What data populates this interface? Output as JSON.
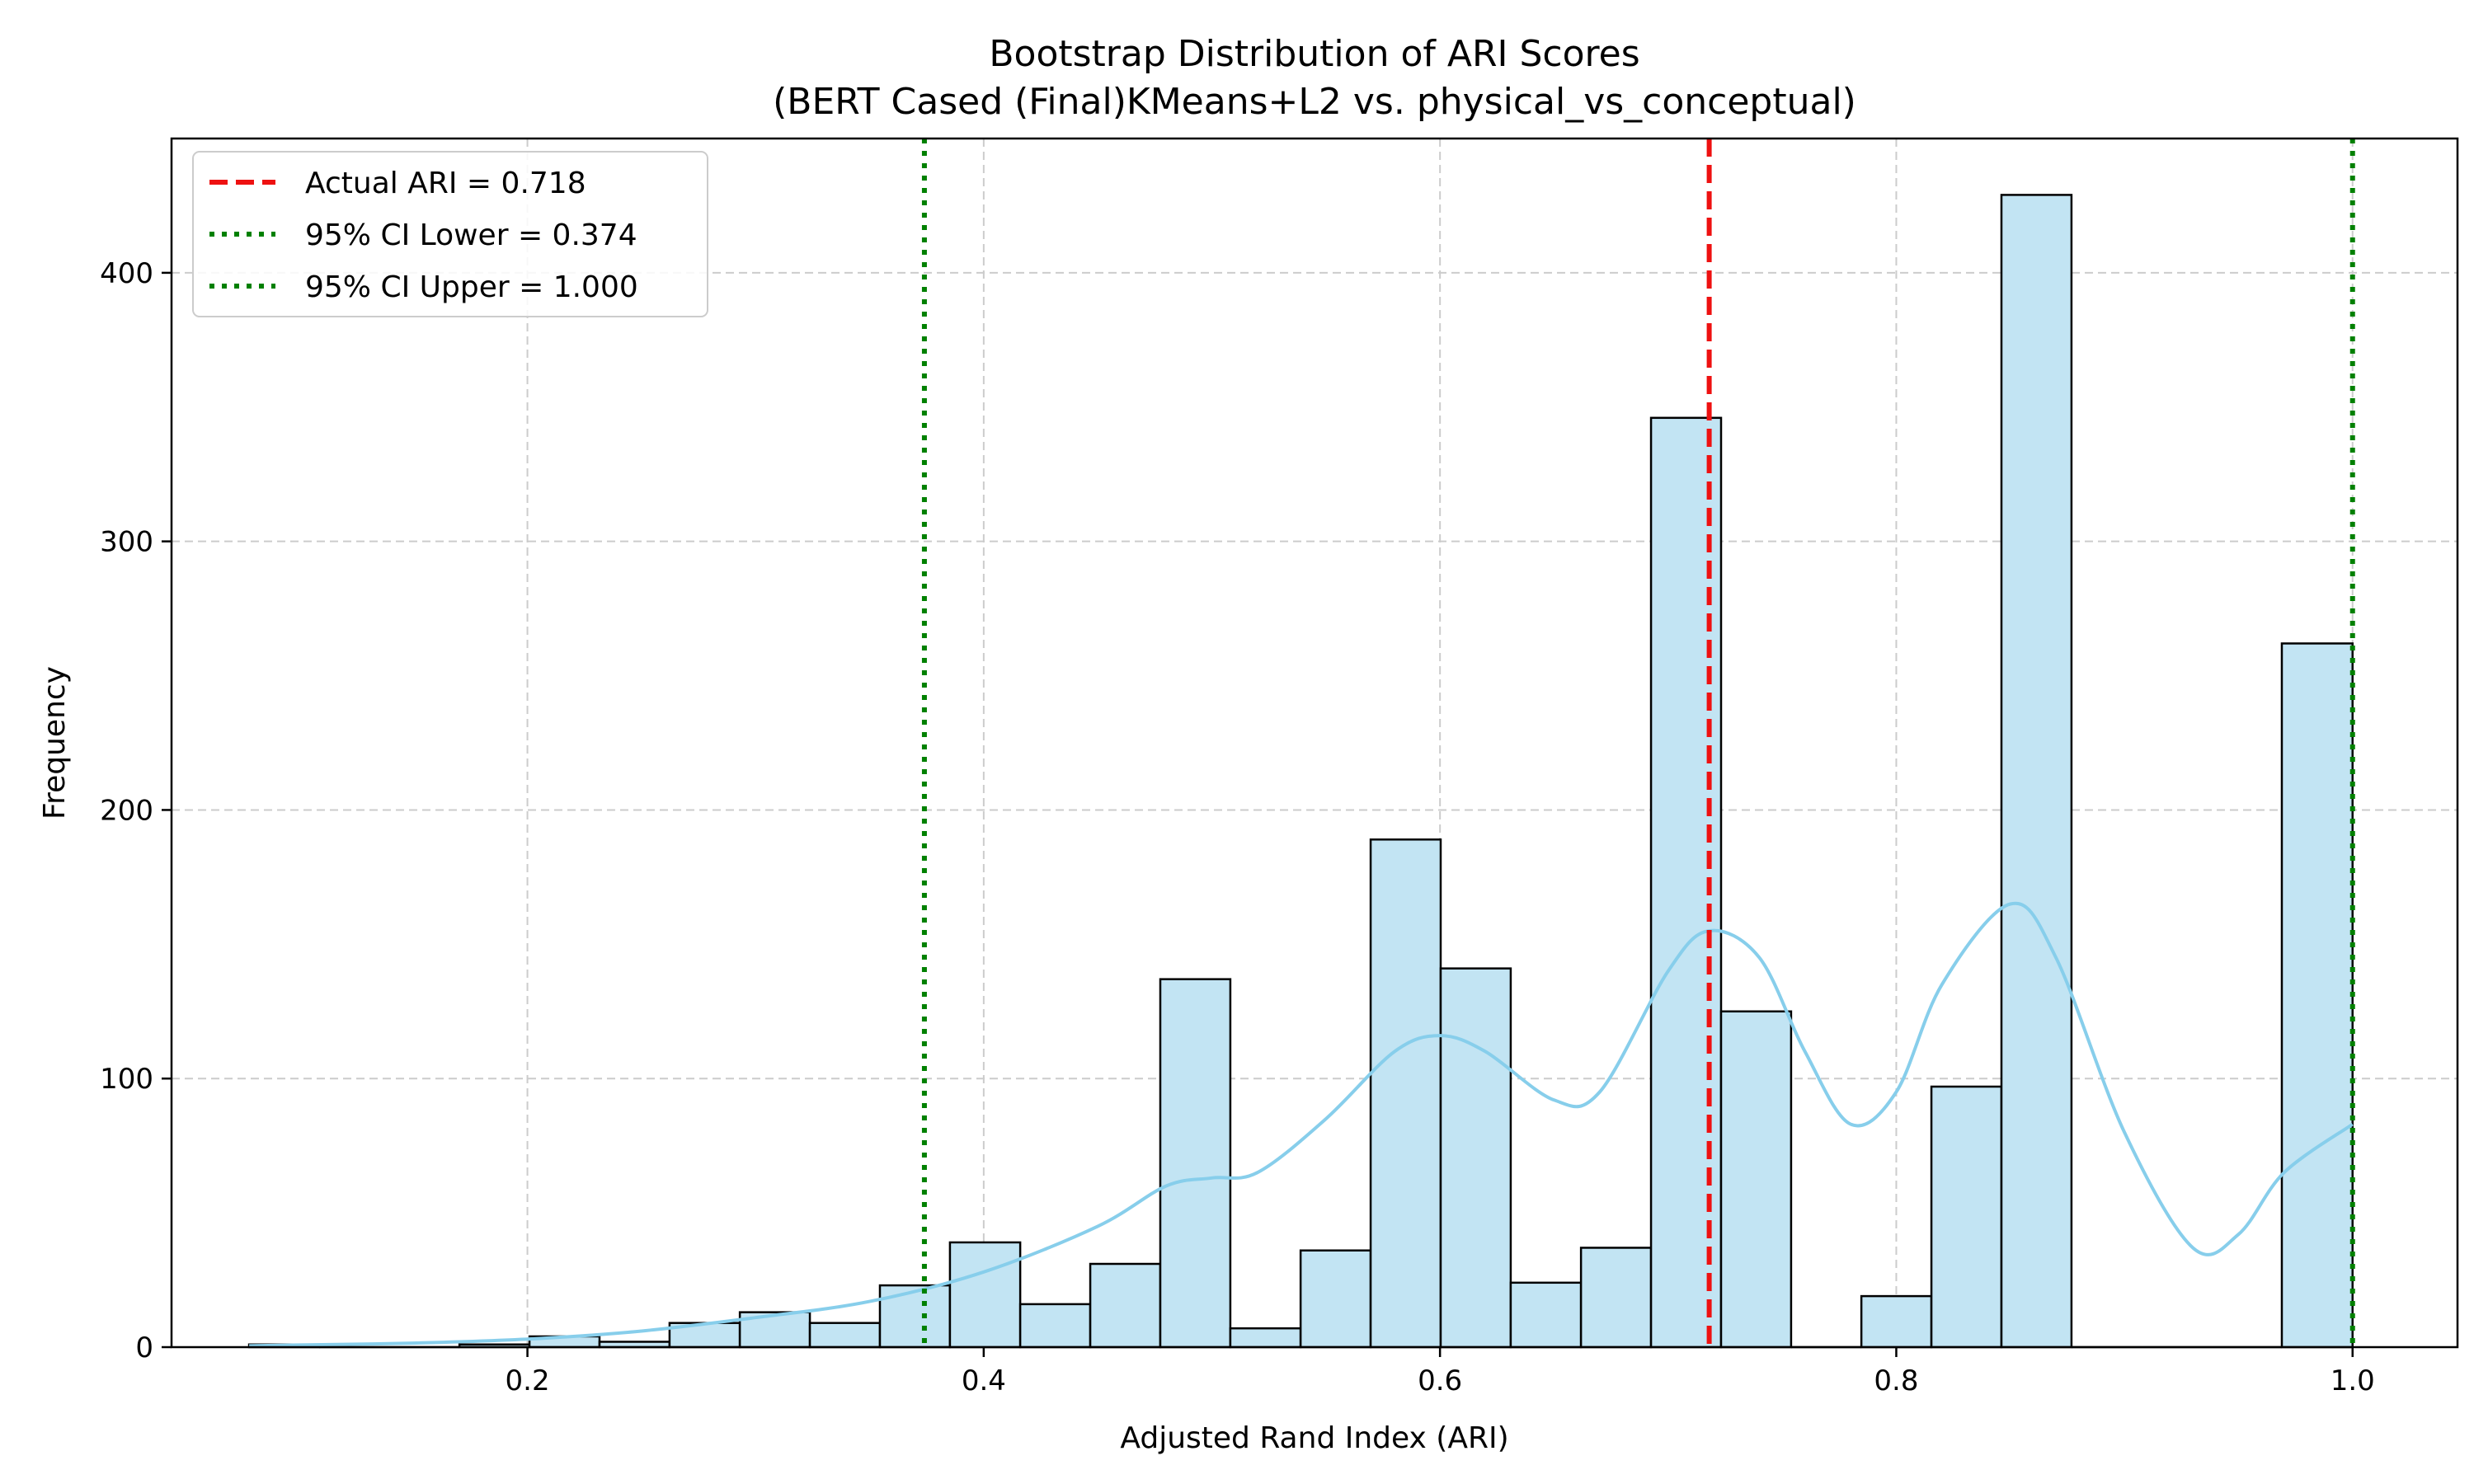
{
  "chart_data": {
    "type": "histogram",
    "title": "Bootstrap Distribution of ARI Scores",
    "subtitle": "(BERT Cased (Final)KMeans+L2 vs. physical_vs_conceptual)",
    "xlabel": "Adjusted Rand Index (ARI)",
    "ylabel": "Frequency",
    "xlim": [
      0.044,
      1.046
    ],
    "ylim": [
      0,
      450
    ],
    "xticks": [
      0.2,
      0.4,
      0.6,
      0.8,
      1.0
    ],
    "xtick_labels": [
      "0.2",
      "0.4",
      "0.6",
      "0.8",
      "1.0"
    ],
    "yticks": [
      0,
      100,
      200,
      300,
      400
    ],
    "ytick_labels": [
      "0",
      "100",
      "200",
      "300",
      "400"
    ],
    "grid": true,
    "grid_style": "dashed",
    "legend_position": "top-left",
    "bar_color": "#c2e4f3",
    "bar_edge_color": "#000000",
    "kde_color": "#87ceeb",
    "bins": [
      {
        "x0": 0.078,
        "x1": 0.1087,
        "count": 1
      },
      {
        "x0": 0.1087,
        "x1": 0.1394,
        "count": 0
      },
      {
        "x0": 0.1394,
        "x1": 0.1702,
        "count": 0
      },
      {
        "x0": 0.1702,
        "x1": 0.2009,
        "count": 1
      },
      {
        "x0": 0.2009,
        "x1": 0.2316,
        "count": 4
      },
      {
        "x0": 0.2316,
        "x1": 0.2623,
        "count": 2
      },
      {
        "x0": 0.2623,
        "x1": 0.2931,
        "count": 9
      },
      {
        "x0": 0.2931,
        "x1": 0.3238,
        "count": 13
      },
      {
        "x0": 0.3238,
        "x1": 0.3545,
        "count": 9
      },
      {
        "x0": 0.3545,
        "x1": 0.3852,
        "count": 23
      },
      {
        "x0": 0.3852,
        "x1": 0.416,
        "count": 39
      },
      {
        "x0": 0.416,
        "x1": 0.4467,
        "count": 16
      },
      {
        "x0": 0.4467,
        "x1": 0.4774,
        "count": 31
      },
      {
        "x0": 0.4774,
        "x1": 0.5081,
        "count": 137
      },
      {
        "x0": 0.5081,
        "x1": 0.5389,
        "count": 7
      },
      {
        "x0": 0.5389,
        "x1": 0.5696,
        "count": 36
      },
      {
        "x0": 0.5696,
        "x1": 0.6003,
        "count": 189
      },
      {
        "x0": 0.6003,
        "x1": 0.631,
        "count": 141
      },
      {
        "x0": 0.631,
        "x1": 0.6618,
        "count": 24
      },
      {
        "x0": 0.6618,
        "x1": 0.6925,
        "count": 37
      },
      {
        "x0": 0.6925,
        "x1": 0.7232,
        "count": 346
      },
      {
        "x0": 0.7232,
        "x1": 0.7539,
        "count": 125
      },
      {
        "x0": 0.7539,
        "x1": 0.7847,
        "count": 0
      },
      {
        "x0": 0.7847,
        "x1": 0.8154,
        "count": 19
      },
      {
        "x0": 0.8154,
        "x1": 0.8461,
        "count": 97
      },
      {
        "x0": 0.8461,
        "x1": 0.8768,
        "count": 429
      },
      {
        "x0": 0.8768,
        "x1": 0.9076,
        "count": 0
      },
      {
        "x0": 0.9076,
        "x1": 0.9383,
        "count": 0
      },
      {
        "x0": 0.9383,
        "x1": 0.969,
        "count": 0
      },
      {
        "x0": 0.969,
        "x1": 1.0,
        "count": 262
      }
    ],
    "kde": {
      "x": [
        0.078,
        0.1,
        0.15,
        0.2,
        0.25,
        0.3,
        0.35,
        0.4,
        0.45,
        0.48,
        0.5,
        0.52,
        0.55,
        0.58,
        0.6,
        0.62,
        0.65,
        0.67,
        0.7,
        0.718,
        0.74,
        0.76,
        0.78,
        0.8,
        0.82,
        0.85,
        0.87,
        0.9,
        0.93,
        0.95,
        0.97,
        1.0
      ],
      "y": [
        0.5,
        0.8,
        1.5,
        3,
        6,
        11,
        17,
        28,
        45,
        60,
        63,
        65,
        85,
        110,
        116,
        110,
        92,
        95,
        140,
        155,
        145,
        110,
        83,
        95,
        135,
        165,
        145,
        80,
        37,
        42,
        65,
        83
      ]
    },
    "reference_lines": [
      {
        "name": "Actual ARI = 0.718",
        "x": 0.718,
        "color": "#ee1111",
        "style": "dashed"
      },
      {
        "name": "95% CI Lower = 0.374",
        "x": 0.374,
        "color": "#008000",
        "style": "dotted"
      },
      {
        "name": "95% CI Upper = 1.000",
        "x": 1.0,
        "color": "#008000",
        "style": "dotted"
      }
    ]
  }
}
